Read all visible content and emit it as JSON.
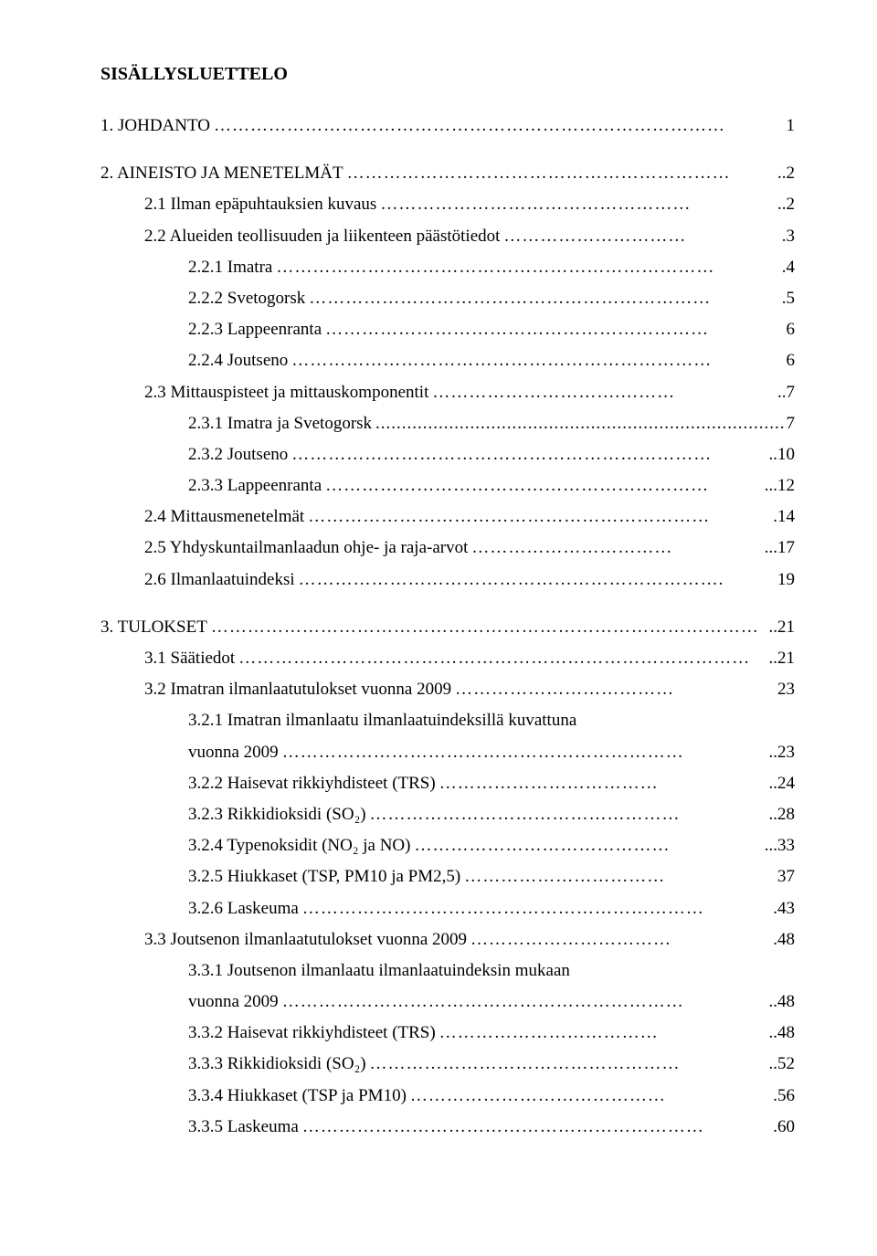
{
  "title": "SISÄLLYSLUETTELO",
  "entries": [
    {
      "label": "1. JOHDANTO",
      "leader": "…………………………………………………………………………",
      "page": " 1",
      "indent": 0,
      "gapBefore": false
    },
    {
      "label": "2. AINEISTO JA MENETELMÄT",
      "leader": "………………………………………………………",
      "page": "..2",
      "indent": 0,
      "gapBefore": true
    },
    {
      "label": "2.1 Ilman epäpuhtauksien kuvaus",
      "leader": "……………………………………………",
      "page": "..2",
      "indent": 1,
      "gapBefore": false
    },
    {
      "label": "2.2 Alueiden teollisuuden ja liikenteen päästötiedot",
      "leader": "…………………………",
      "page": ".3",
      "indent": 1,
      "gapBefore": false
    },
    {
      "label": "2.2.1 Imatra",
      "leader": "………………………………………………………………",
      "page": ".4",
      "indent": 2,
      "gapBefore": false
    },
    {
      "label": "2.2.2 Svetogorsk",
      "leader": "…………………………………………………………",
      "page": ".5",
      "indent": 2,
      "gapBefore": false
    },
    {
      "label": "2.2.3 Lappeenranta",
      "leader": "………………………………………………………",
      "page": " 6",
      "indent": 2,
      "gapBefore": false
    },
    {
      "label": "2.2.4 Joutseno",
      "leader": "……………………………………………………………",
      "page": " 6",
      "indent": 2,
      "gapBefore": false
    },
    {
      "label": "2.3 Mittauspisteet ja mittauskomponentit",
      "leader": "………………………….………",
      "page": "..7",
      "indent": 1,
      "gapBefore": false
    },
    {
      "label": "2.3.1 Imatra ja Svetogorsk",
      "leader": "...............................................................................",
      "page": "7",
      "indent": 2,
      "gapBefore": false
    },
    {
      "label": "2.3.2 Joutseno",
      "leader": "……………………………………………………………",
      "page": "..10",
      "indent": 2,
      "gapBefore": false
    },
    {
      "label": "2.3.3 Lappeenranta",
      "leader": "………………………………………………………",
      "page": "...12",
      "indent": 2,
      "gapBefore": false
    },
    {
      "label": "2.4 Mittausmenetelmät",
      "leader": "…………………………………………………………",
      "page": ".14",
      "indent": 1,
      "gapBefore": false
    },
    {
      "label": "2.5 Yhdyskuntailmanlaadun ohje- ja raja-arvot",
      "leader": "……………………………",
      "page": "...17",
      "indent": 1,
      "gapBefore": false
    },
    {
      "label": "2.6 Ilmanlaatuindeksi",
      "leader": "…………………………………………………………….",
      "page": " 19",
      "indent": 1,
      "gapBefore": false
    },
    {
      "label": "3. TULOKSET",
      "leader": "………………………………………………………………………………",
      "page": "..21",
      "indent": 0,
      "gapBefore": true
    },
    {
      "label": "3.1 Säätiedot",
      "leader": "…………………………………………………………………………",
      "page": "..21",
      "indent": 1,
      "gapBefore": false
    },
    {
      "label": "3.2 Imatran ilmanlaatutulokset vuonna 2009",
      "leader": "………………………………",
      "page": " 23",
      "indent": 1,
      "gapBefore": false
    },
    {
      "label": "3.2.1 Imatran ilmanlaatu ilmanlaatuindeksillä kuvattuna",
      "leader": "",
      "page": "",
      "indent": 2,
      "gapBefore": false
    },
    {
      "label": "vuonna 2009",
      "leader": "…………………………………………………………",
      "page": "..23",
      "indent": 2,
      "gapBefore": false
    },
    {
      "label": "3.2.2 Haisevat rikkiyhdisteet (TRS)",
      "leader": "………………………………",
      "page": "..24",
      "indent": 2,
      "gapBefore": false
    },
    {
      "label": "3.2.3 Rikkidioksidi (SO₂)",
      "leader": "……………………………………………",
      "page": "..28",
      "indent": 2,
      "gapBefore": false
    },
    {
      "label": "3.2.4 Typenoksidit (NO₂ ja NO)",
      "leader": "……………………………………",
      "page": "...33",
      "indent": 2,
      "gapBefore": false
    },
    {
      "label": "3.2.5 Hiukkaset (TSP, PM10 ja PM2,5)",
      "leader": "……………………………",
      "page": " 37",
      "indent": 2,
      "gapBefore": false
    },
    {
      "label": "3.2.6 Laskeuma",
      "leader": "…………………………………………………………",
      "page": ".43",
      "indent": 2,
      "gapBefore": false
    },
    {
      "label": "3.3 Joutsenon ilmanlaatutulokset vuonna 2009",
      "leader": "……………………………",
      "page": ".48",
      "indent": 1,
      "gapBefore": false
    },
    {
      "label": "3.3.1 Joutsenon ilmanlaatu ilmanlaatuindeksin mukaan",
      "leader": "",
      "page": "",
      "indent": 2,
      "gapBefore": false
    },
    {
      "label": "vuonna 2009",
      "leader": "…………………………………………………………",
      "page": "..48",
      "indent": 2,
      "gapBefore": false
    },
    {
      "label": "3.3.2 Haisevat rikkiyhdisteet (TRS)",
      "leader": "………………………………",
      "page": "..48",
      "indent": 2,
      "gapBefore": false
    },
    {
      "label": "3.3.3 Rikkidioksidi (SO₂)",
      "leader": "……………………………………………",
      "page": "..52",
      "indent": 2,
      "gapBefore": false
    },
    {
      "label": "3.3.4 Hiukkaset (TSP ja PM10)",
      "leader": "……………………………………",
      "page": ".56",
      "indent": 2,
      "gapBefore": false
    },
    {
      "label": "3.3.5 Laskeuma",
      "leader": "…………………………………………………………",
      "page": ".60",
      "indent": 2,
      "gapBefore": false
    }
  ]
}
